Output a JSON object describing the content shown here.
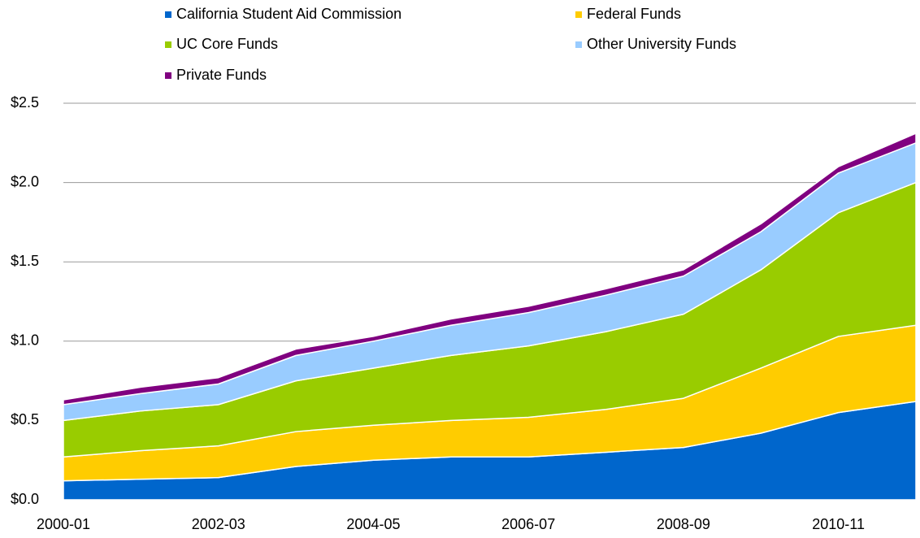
{
  "chart_data": {
    "type": "stacked-area",
    "categories": [
      "2000-01",
      null,
      "2002-03",
      null,
      "2004-05",
      null,
      "2006-07",
      null,
      "2008-09",
      null,
      "2010-11",
      null
    ],
    "series": [
      {
        "name": "California Student Aid Commission",
        "color": "#0066cc",
        "values": [
          0.12,
          0.13,
          0.14,
          0.21,
          0.25,
          0.27,
          0.27,
          0.3,
          0.33,
          0.42,
          0.55,
          0.62
        ]
      },
      {
        "name": "Federal Funds",
        "color": "#ffcc00",
        "values": [
          0.15,
          0.18,
          0.2,
          0.22,
          0.22,
          0.23,
          0.25,
          0.27,
          0.31,
          0.41,
          0.48,
          0.48
        ]
      },
      {
        "name": "UC Core Funds",
        "color": "#99cc00",
        "values": [
          0.23,
          0.25,
          0.26,
          0.32,
          0.36,
          0.41,
          0.45,
          0.49,
          0.53,
          0.62,
          0.78,
          0.9
        ]
      },
      {
        "name": "Other University Funds",
        "color": "#99ccff",
        "values": [
          0.1,
          0.11,
          0.13,
          0.16,
          0.17,
          0.19,
          0.21,
          0.23,
          0.24,
          0.24,
          0.25,
          0.25
        ]
      },
      {
        "name": "Private Funds",
        "color": "#800080",
        "values": [
          0.03,
          0.04,
          0.04,
          0.04,
          0.03,
          0.04,
          0.04,
          0.04,
          0.04,
          0.05,
          0.04,
          0.06
        ]
      }
    ],
    "ylim": [
      0,
      2.5
    ],
    "yticks": [
      {
        "value": 0,
        "label": "$0.0"
      },
      {
        "value": 0.5,
        "label": "$0.5"
      },
      {
        "value": 1,
        "label": "$1.0"
      },
      {
        "value": 1.5,
        "label": "$1.5"
      },
      {
        "value": 2,
        "label": "$2.0"
      },
      {
        "value": 2.5,
        "label": "$2.5"
      }
    ],
    "grid": true
  }
}
